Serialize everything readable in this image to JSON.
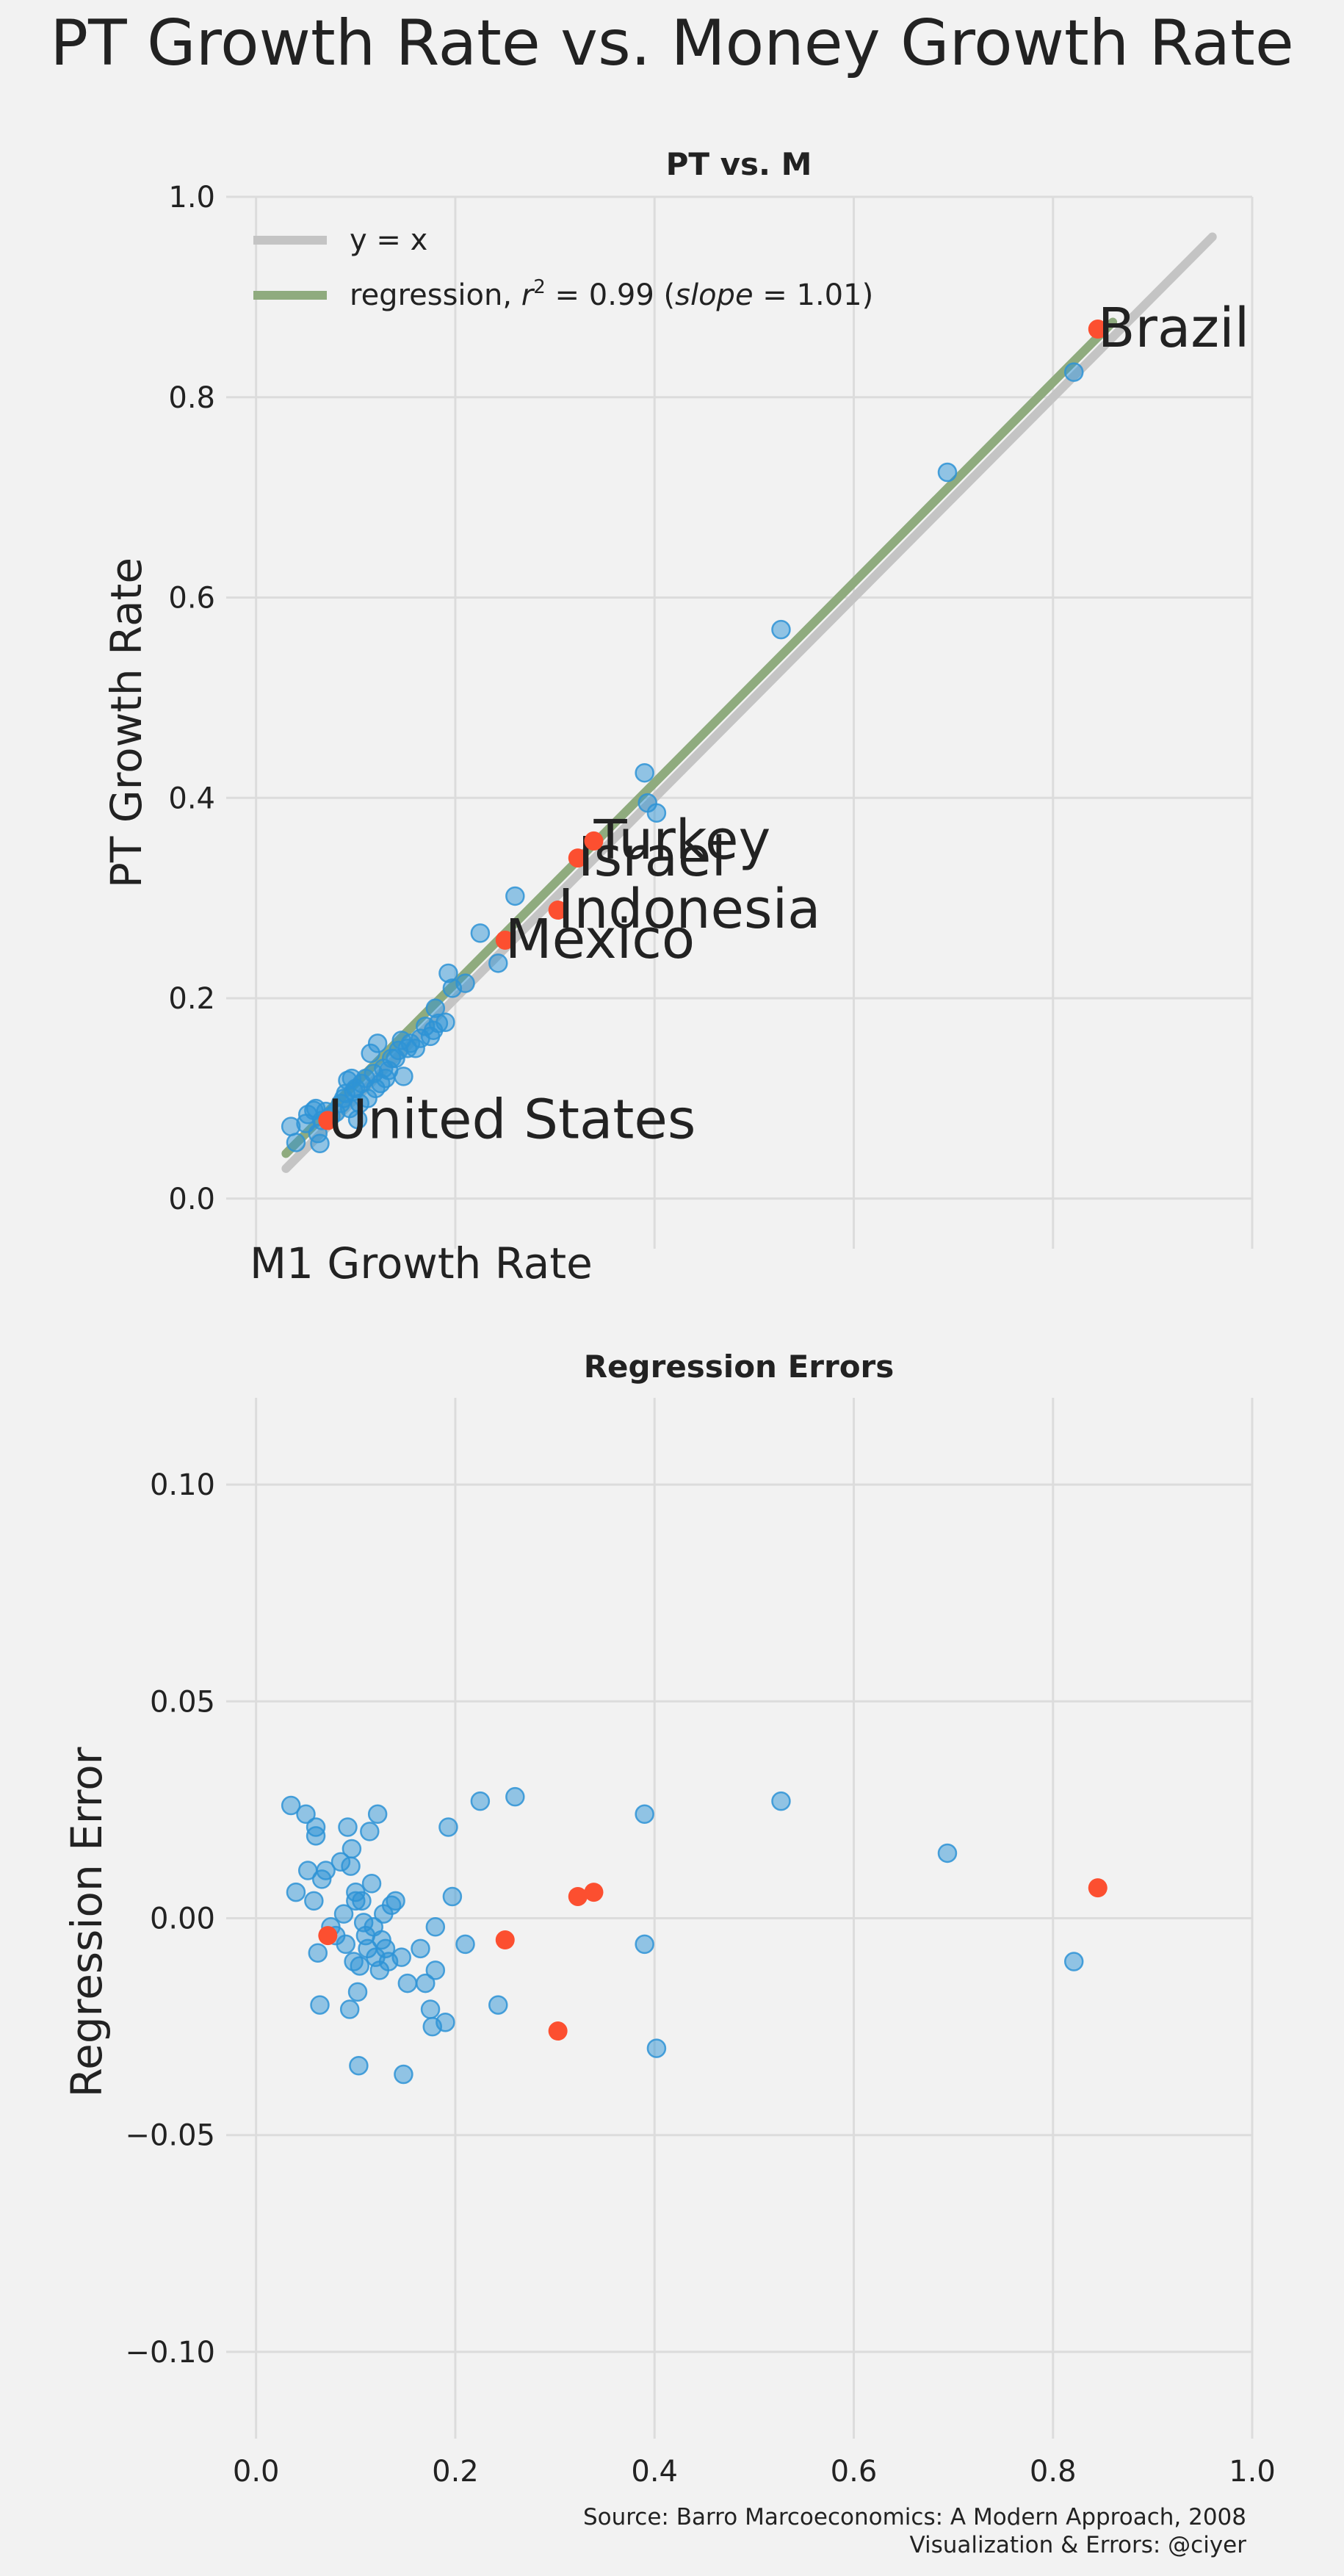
{
  "figure": {
    "title": "PT Growth Rate vs. Money Growth Rate",
    "source_line1": "Source: Barro Marcoeconomics: A Modern Approach, 2008",
    "source_line2": "Visualization & Errors: @ciyer"
  },
  "colors": {
    "background": "#f2f2f2",
    "grid": "#dcdcdc",
    "points": "#2e93d6",
    "highlight": "#fc4f30",
    "identity_line": "#c4c4c4",
    "regression_line": "#8fab7e",
    "text": "#222222"
  },
  "chart_data": [
    {
      "type": "scatter",
      "title": "PT vs. M",
      "xlabel": "M1 Growth Rate",
      "ylabel": "PT Growth Rate",
      "xlim": [
        -0.03,
        1.0
      ],
      "ylim": [
        -0.05,
        1.0
      ],
      "xticks": [
        0.0,
        0.2,
        0.4,
        0.6,
        0.8,
        1.0
      ],
      "yticks": [
        0.0,
        0.2,
        0.4,
        0.6,
        0.8,
        1.0
      ],
      "ytick_labels": [
        "0.0",
        "0.2",
        "0.4",
        "0.6",
        "0.8",
        "1.0"
      ],
      "grid": true,
      "legend_position": "top-left",
      "legend": [
        {
          "label": "y = x",
          "style": "identity"
        },
        {
          "label_prefix": "regression, ",
          "label_r": "r",
          "label_sup": "2",
          "label_mid": " = 0.99 (",
          "label_slope": "slope",
          "label_end": " = 1.01)",
          "style": "regression"
        }
      ],
      "identity_line": {
        "x": [
          0.03,
          0.96
        ],
        "y": [
          0.03,
          0.96
        ]
      },
      "regression_line": {
        "x": [
          0.03,
          0.86
        ],
        "y": [
          0.045,
          0.875
        ]
      },
      "points": [
        {
          "x": 0.035,
          "y": 0.072
        },
        {
          "x": 0.04,
          "y": 0.056
        },
        {
          "x": 0.05,
          "y": 0.075
        },
        {
          "x": 0.052,
          "y": 0.084
        },
        {
          "x": 0.058,
          "y": 0.088
        },
        {
          "x": 0.06,
          "y": 0.09
        },
        {
          "x": 0.062,
          "y": 0.065
        },
        {
          "x": 0.064,
          "y": 0.055
        },
        {
          "x": 0.066,
          "y": 0.078
        },
        {
          "x": 0.07,
          "y": 0.087
        },
        {
          "x": 0.075,
          "y": 0.082
        },
        {
          "x": 0.08,
          "y": 0.086
        },
        {
          "x": 0.085,
          "y": 0.095
        },
        {
          "x": 0.088,
          "y": 0.1
        },
        {
          "x": 0.09,
          "y": 0.105
        },
        {
          "x": 0.092,
          "y": 0.118
        },
        {
          "x": 0.094,
          "y": 0.09
        },
        {
          "x": 0.096,
          "y": 0.12
        },
        {
          "x": 0.098,
          "y": 0.107
        },
        {
          "x": 0.1,
          "y": 0.11
        },
        {
          "x": 0.102,
          "y": 0.079
        },
        {
          "x": 0.104,
          "y": 0.095
        },
        {
          "x": 0.106,
          "y": 0.115
        },
        {
          "x": 0.11,
          "y": 0.12
        },
        {
          "x": 0.112,
          "y": 0.1
        },
        {
          "x": 0.115,
          "y": 0.145
        },
        {
          "x": 0.118,
          "y": 0.125
        },
        {
          "x": 0.12,
          "y": 0.11
        },
        {
          "x": 0.122,
          "y": 0.155
        },
        {
          "x": 0.125,
          "y": 0.115
        },
        {
          "x": 0.128,
          "y": 0.13
        },
        {
          "x": 0.13,
          "y": 0.12
        },
        {
          "x": 0.133,
          "y": 0.128
        },
        {
          "x": 0.136,
          "y": 0.14
        },
        {
          "x": 0.14,
          "y": 0.14
        },
        {
          "x": 0.143,
          "y": 0.148
        },
        {
          "x": 0.146,
          "y": 0.158
        },
        {
          "x": 0.148,
          "y": 0.122
        },
        {
          "x": 0.152,
          "y": 0.15
        },
        {
          "x": 0.155,
          "y": 0.155
        },
        {
          "x": 0.16,
          "y": 0.15
        },
        {
          "x": 0.165,
          "y": 0.16
        },
        {
          "x": 0.17,
          "y": 0.172
        },
        {
          "x": 0.175,
          "y": 0.162
        },
        {
          "x": 0.178,
          "y": 0.168
        },
        {
          "x": 0.18,
          "y": 0.19
        },
        {
          "x": 0.183,
          "y": 0.175
        },
        {
          "x": 0.19,
          "y": 0.176
        },
        {
          "x": 0.193,
          "y": 0.225
        },
        {
          "x": 0.197,
          "y": 0.21
        },
        {
          "x": 0.21,
          "y": 0.215
        },
        {
          "x": 0.225,
          "y": 0.265
        },
        {
          "x": 0.243,
          "y": 0.235
        },
        {
          "x": 0.26,
          "y": 0.302
        },
        {
          "x": 0.39,
          "y": 0.425
        },
        {
          "x": 0.393,
          "y": 0.395
        },
        {
          "x": 0.402,
          "y": 0.385
        },
        {
          "x": 0.527,
          "y": 0.568
        },
        {
          "x": 0.694,
          "y": 0.725
        },
        {
          "x": 0.821,
          "y": 0.825
        }
      ],
      "highlighted": [
        {
          "label": "United States",
          "x": 0.072,
          "y": 0.078
        },
        {
          "label": "Mexico",
          "x": 0.25,
          "y": 0.258
        },
        {
          "label": "Indonesia",
          "x": 0.303,
          "y": 0.288
        },
        {
          "label": "Israel",
          "x": 0.323,
          "y": 0.34
        },
        {
          "label": "Turkey",
          "x": 0.339,
          "y": 0.357
        },
        {
          "label": "Brazil",
          "x": 0.845,
          "y": 0.868
        }
      ]
    },
    {
      "type": "scatter",
      "title": "Regression Errors",
      "xlabel": "",
      "ylabel": "Regression Error",
      "xlim": [
        -0.03,
        1.0
      ],
      "ylim": [
        -0.12,
        0.12
      ],
      "xticks": [
        0.0,
        0.2,
        0.4,
        0.6,
        0.8,
        1.0
      ],
      "xtick_labels": [
        "0.0",
        "0.2",
        "0.4",
        "0.6",
        "0.8",
        "1.0"
      ],
      "yticks": [
        -0.1,
        -0.05,
        0.0,
        0.05,
        0.1
      ],
      "ytick_labels": [
        "−0.10",
        "−0.05",
        "0.00",
        "0.05",
        "0.10"
      ],
      "grid": true,
      "points": [
        {
          "x": 0.035,
          "y": 0.026
        },
        {
          "x": 0.04,
          "y": 0.006
        },
        {
          "x": 0.05,
          "y": 0.024
        },
        {
          "x": 0.052,
          "y": 0.011
        },
        {
          "x": 0.058,
          "y": 0.004
        },
        {
          "x": 0.06,
          "y": 0.021
        },
        {
          "x": 0.06,
          "y": 0.019
        },
        {
          "x": 0.062,
          "y": -0.008
        },
        {
          "x": 0.064,
          "y": -0.02
        },
        {
          "x": 0.066,
          "y": 0.009
        },
        {
          "x": 0.07,
          "y": 0.011
        },
        {
          "x": 0.075,
          "y": -0.002
        },
        {
          "x": 0.08,
          "y": -0.004
        },
        {
          "x": 0.085,
          "y": 0.013
        },
        {
          "x": 0.088,
          "y": 0.001
        },
        {
          "x": 0.09,
          "y": -0.006
        },
        {
          "x": 0.092,
          "y": 0.021
        },
        {
          "x": 0.094,
          "y": -0.021
        },
        {
          "x": 0.095,
          "y": 0.012
        },
        {
          "x": 0.096,
          "y": 0.016
        },
        {
          "x": 0.098,
          "y": -0.01
        },
        {
          "x": 0.1,
          "y": 0.006
        },
        {
          "x": 0.1,
          "y": 0.004
        },
        {
          "x": 0.102,
          "y": -0.017
        },
        {
          "x": 0.103,
          "y": -0.034
        },
        {
          "x": 0.104,
          "y": -0.011
        },
        {
          "x": 0.106,
          "y": 0.004
        },
        {
          "x": 0.108,
          "y": -0.001
        },
        {
          "x": 0.11,
          "y": -0.004
        },
        {
          "x": 0.112,
          "y": -0.007
        },
        {
          "x": 0.114,
          "y": 0.02
        },
        {
          "x": 0.116,
          "y": 0.008
        },
        {
          "x": 0.118,
          "y": -0.002
        },
        {
          "x": 0.12,
          "y": -0.009
        },
        {
          "x": 0.122,
          "y": 0.024
        },
        {
          "x": 0.124,
          "y": -0.012
        },
        {
          "x": 0.126,
          "y": -0.005
        },
        {
          "x": 0.128,
          "y": 0.001
        },
        {
          "x": 0.13,
          "y": -0.007
        },
        {
          "x": 0.133,
          "y": -0.01
        },
        {
          "x": 0.136,
          "y": 0.003
        },
        {
          "x": 0.14,
          "y": 0.004
        },
        {
          "x": 0.146,
          "y": -0.009
        },
        {
          "x": 0.148,
          "y": -0.036
        },
        {
          "x": 0.152,
          "y": -0.015
        },
        {
          "x": 0.165,
          "y": -0.007
        },
        {
          "x": 0.17,
          "y": -0.015
        },
        {
          "x": 0.175,
          "y": -0.021
        },
        {
          "x": 0.177,
          "y": -0.025
        },
        {
          "x": 0.18,
          "y": -0.002
        },
        {
          "x": 0.18,
          "y": -0.012
        },
        {
          "x": 0.19,
          "y": -0.024
        },
        {
          "x": 0.193,
          "y": 0.021
        },
        {
          "x": 0.197,
          "y": 0.005
        },
        {
          "x": 0.21,
          "y": -0.006
        },
        {
          "x": 0.225,
          "y": 0.027
        },
        {
          "x": 0.243,
          "y": -0.02
        },
        {
          "x": 0.26,
          "y": 0.028
        },
        {
          "x": 0.39,
          "y": 0.024
        },
        {
          "x": 0.39,
          "y": -0.006
        },
        {
          "x": 0.402,
          "y": -0.03
        },
        {
          "x": 0.527,
          "y": 0.027
        },
        {
          "x": 0.694,
          "y": 0.015
        },
        {
          "x": 0.821,
          "y": -0.01
        }
      ],
      "highlighted": [
        {
          "x": 0.072,
          "y": -0.004
        },
        {
          "x": 0.25,
          "y": -0.005
        },
        {
          "x": 0.303,
          "y": -0.026
        },
        {
          "x": 0.323,
          "y": 0.005
        },
        {
          "x": 0.339,
          "y": 0.006
        },
        {
          "x": 0.845,
          "y": 0.007
        }
      ]
    }
  ]
}
